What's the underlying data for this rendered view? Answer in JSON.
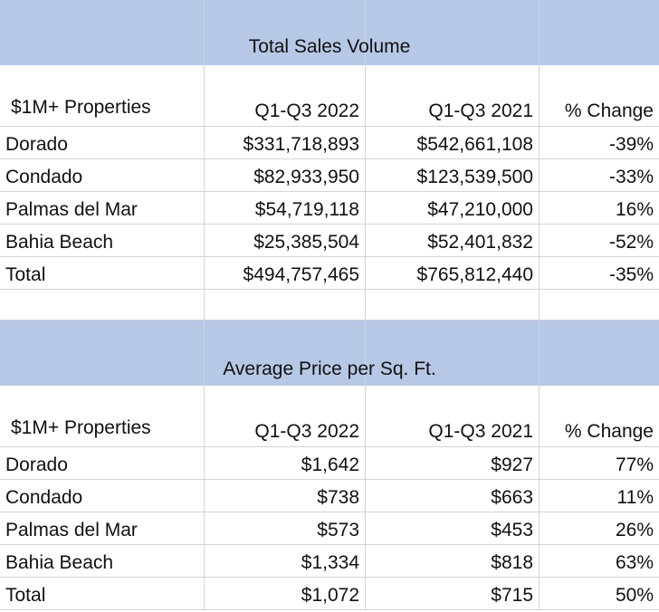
{
  "sections": [
    {
      "title": "Total Sales Volume",
      "headers": [
        "$1M+ Properties",
        "Q1-Q3 2022",
        "Q1-Q3 2021",
        "% Change"
      ],
      "rows": [
        [
          "Dorado",
          "$331,718,893",
          "$542,661,108",
          "-39%"
        ],
        [
          "Condado",
          "$82,933,950",
          "$123,539,500",
          "-33%"
        ],
        [
          "Palmas del Mar",
          "$54,719,118",
          "$47,210,000",
          "16%"
        ],
        [
          "Bahia Beach",
          "$25,385,504",
          "$52,401,832",
          "-52%"
        ],
        [
          "Total",
          "$494,757,465",
          "$765,812,440",
          "-35%"
        ]
      ]
    },
    {
      "title": "Average Price per Sq. Ft.",
      "headers": [
        "$1M+ Properties",
        "Q1-Q3 2022",
        "Q1-Q3 2021",
        "% Change"
      ],
      "rows": [
        [
          "Dorado",
          "$1,642",
          "$927",
          "77%"
        ],
        [
          "Condado",
          "$738",
          "$663",
          "11%"
        ],
        [
          "Palmas del Mar",
          "$573",
          "$453",
          "26%"
        ],
        [
          "Bahia Beach",
          "$1,334",
          "$818",
          "63%"
        ],
        [
          "Total",
          "$1,072",
          "$715",
          "50%"
        ]
      ]
    }
  ]
}
